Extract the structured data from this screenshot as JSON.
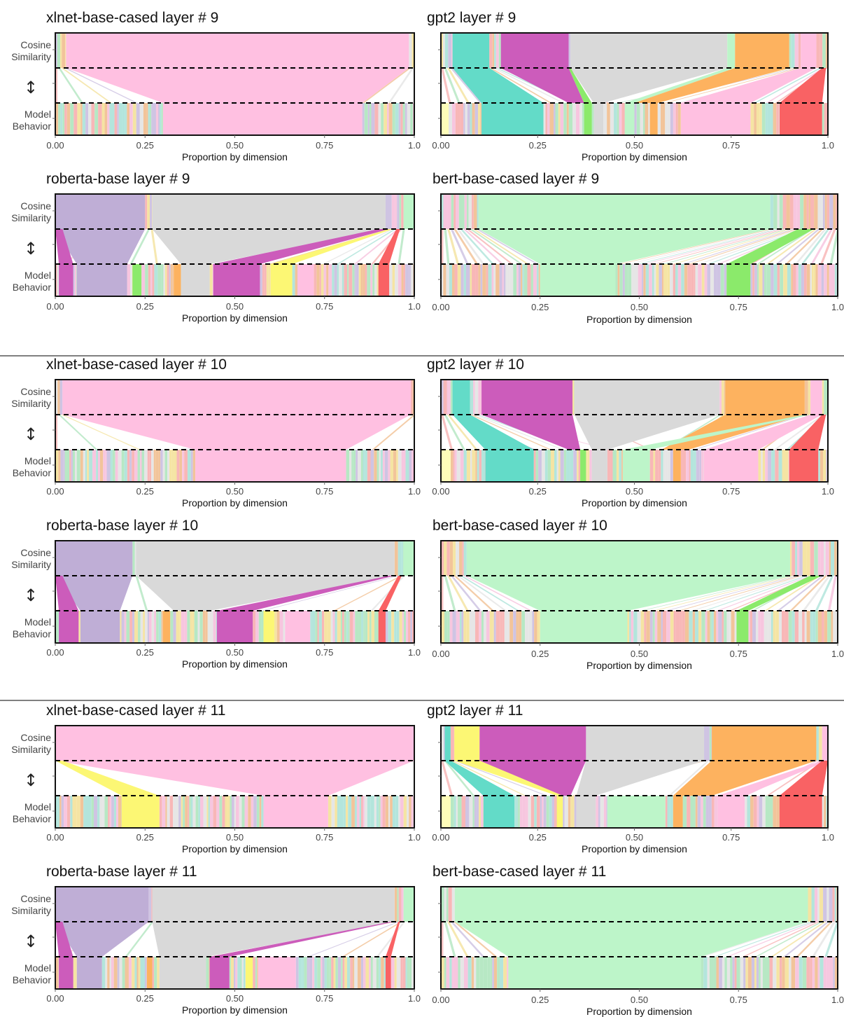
{
  "page": {
    "row_labels": {
      "cosine_1": "Cosine",
      "cosine_2": "Similarity",
      "arrow": "↕",
      "model_1": "Model",
      "model_2": "Behavior"
    }
  },
  "colors": {
    "pink": "#FFC0E1",
    "grey": "#D9D9D9",
    "lavender": "#BFAED6",
    "mint": "#BDF5C9",
    "teal": "#63DBC8",
    "magenta": "#CC5CBB",
    "orange": "#FDB25F",
    "red": "#F96264",
    "yellow": "#FCF774",
    "lightyellow": "#FEFDB9",
    "green": "#8BEA6B",
    "dashed_line": "#000000"
  },
  "chart_data": [
    {
      "type": "parallel-sets",
      "title": "xlnet-base-cased layer # 9",
      "xlabel": "Proportion by dimension",
      "xticks": [
        "0.00",
        "0.25",
        "0.50",
        "0.75",
        "1.0"
      ],
      "xlim": [
        0,
        1
      ],
      "levels": [
        "Cosine Similarity",
        "Model Behavior"
      ],
      "top": [
        {
          "c": "pink",
          "s": 0.03,
          "e": 0.985
        }
      ],
      "bottom": [
        {
          "c": "pink",
          "s": 0.3,
          "e": 0.855
        }
      ],
      "flows": []
    },
    {
      "type": "parallel-sets",
      "title": "gpt2 layer # 9",
      "xlabel": "Proportion by dimension",
      "xticks": [
        "0.00",
        "0.25",
        "0.50",
        "0.75",
        "1.0"
      ],
      "xlim": [
        0,
        1
      ],
      "levels": [
        "Cosine Similarity",
        "Model Behavior"
      ],
      "top": [
        {
          "c": "teal",
          "s": 0.03,
          "e": 0.125
        },
        {
          "c": "magenta",
          "s": 0.155,
          "e": 0.33
        },
        {
          "c": "grey",
          "s": 0.335,
          "e": 0.74
        },
        {
          "c": "mint",
          "s": 0.74,
          "e": 0.76
        },
        {
          "c": "orange",
          "s": 0.76,
          "e": 0.9
        },
        {
          "c": "pink",
          "s": 0.93,
          "e": 0.97
        }
      ],
      "bottom": [
        {
          "c": "lightyellow",
          "s": 0.0,
          "e": 0.02
        },
        {
          "c": "teal",
          "s": 0.105,
          "e": 0.265
        },
        {
          "c": "green",
          "s": 0.37,
          "e": 0.39
        },
        {
          "c": "grey",
          "s": 0.395,
          "e": 0.42
        },
        {
          "c": "mint",
          "s": 0.475,
          "e": 0.5
        },
        {
          "c": "orange",
          "s": 0.54,
          "e": 0.56
        },
        {
          "c": "pink",
          "s": 0.62,
          "e": 0.8
        },
        {
          "c": "red",
          "s": 0.875,
          "e": 0.985
        }
      ],
      "flows": [
        {
          "c": "teal",
          "ts": 0.03,
          "te": 0.125,
          "bs": 0.105,
          "be": 0.265
        },
        {
          "c": "magenta",
          "ts": 0.155,
          "te": 0.33,
          "bs": 0.33,
          "be": 0.37
        },
        {
          "c": "green",
          "ts": 0.33,
          "te": 0.335,
          "bs": 0.37,
          "be": 0.39
        },
        {
          "c": "orange",
          "ts": 0.76,
          "te": 0.9,
          "bs": 0.5,
          "be": 0.56
        },
        {
          "c": "pink",
          "ts": 0.93,
          "te": 0.97,
          "bs": 0.62,
          "be": 0.8
        },
        {
          "c": "red",
          "ts": 0.985,
          "te": 0.995,
          "bs": 0.875,
          "be": 0.985
        }
      ]
    },
    {
      "type": "parallel-sets",
      "title": "roberta-base layer # 9",
      "xlabel": "Proportion by dimension",
      "xticks": [
        "0.00",
        "0.25",
        "0.50",
        "0.75",
        "1.0"
      ],
      "xlim": [
        0,
        1
      ],
      "levels": [
        "Cosine Similarity",
        "Model Behavior"
      ],
      "top": [
        {
          "c": "lavender",
          "s": 0.0,
          "e": 0.25
        },
        {
          "c": "grey",
          "s": 0.27,
          "e": 0.92
        },
        {
          "c": "mint",
          "s": 0.97,
          "e": 1.0
        }
      ],
      "bottom": [
        {
          "c": "magenta",
          "s": 0.01,
          "e": 0.05
        },
        {
          "c": "lavender",
          "s": 0.06,
          "e": 0.2
        },
        {
          "c": "green",
          "s": 0.215,
          "e": 0.24
        },
        {
          "c": "orange",
          "s": 0.33,
          "e": 0.35
        },
        {
          "c": "grey",
          "s": 0.35,
          "e": 0.43
        },
        {
          "c": "magenta",
          "s": 0.44,
          "e": 0.57
        },
        {
          "c": "yellow",
          "s": 0.6,
          "e": 0.66
        },
        {
          "c": "pink",
          "s": 0.675,
          "e": 0.72
        },
        {
          "c": "red",
          "s": 0.9,
          "e": 0.93
        }
      ],
      "flows": [
        {
          "c": "lavender",
          "ts": 0.0,
          "te": 0.25,
          "bs": 0.06,
          "be": 0.2
        },
        {
          "c": "magenta",
          "ts": 0.0,
          "te": 0.02,
          "bs": 0.01,
          "be": 0.05
        },
        {
          "c": "grey",
          "ts": 0.27,
          "te": 0.92,
          "bs": 0.35,
          "be": 0.43
        },
        {
          "c": "magenta",
          "ts": 0.9,
          "te": 0.93,
          "bs": 0.44,
          "be": 0.57
        },
        {
          "c": "yellow",
          "ts": 0.93,
          "te": 0.94,
          "bs": 0.6,
          "be": 0.66
        },
        {
          "c": "red",
          "ts": 0.95,
          "te": 0.96,
          "bs": 0.9,
          "be": 0.93
        }
      ]
    },
    {
      "type": "parallel-sets",
      "title": "bert-base-cased layer # 9",
      "xlabel": "Proportion by dimension",
      "xticks": [
        "0.00",
        "0.25",
        "0.50",
        "0.75",
        "1.0"
      ],
      "xlim": [
        0,
        1
      ],
      "levels": [
        "Cosine Similarity",
        "Model Behavior"
      ],
      "top": [
        {
          "c": "mint",
          "s": 0.095,
          "e": 0.83
        }
      ],
      "bottom": [
        {
          "c": "mint",
          "s": 0.25,
          "e": 0.44
        },
        {
          "c": "green",
          "s": 0.72,
          "e": 0.78
        }
      ],
      "flows": [
        {
          "c": "green",
          "ts": 0.9,
          "te": 0.94,
          "bs": 0.72,
          "be": 0.78
        }
      ]
    },
    {
      "type": "parallel-sets",
      "title": "xlnet-base-cased layer # 10",
      "xlabel": "Proportion by dimension",
      "xticks": [
        "0.00",
        "0.25",
        "0.50",
        "0.75",
        "1.0"
      ],
      "xlim": [
        0,
        1
      ],
      "levels": [
        "Cosine Similarity",
        "Model Behavior"
      ],
      "top": [
        {
          "c": "pink",
          "s": 0.02,
          "e": 0.99
        }
      ],
      "bottom": [
        {
          "c": "pink",
          "s": 0.39,
          "e": 0.81
        }
      ],
      "flows": []
    },
    {
      "type": "parallel-sets",
      "title": "gpt2 layer # 10",
      "xlabel": "Proportion by dimension",
      "xticks": [
        "0.00",
        "0.25",
        "0.50",
        "0.75",
        "1.0"
      ],
      "xlim": [
        0,
        1
      ],
      "levels": [
        "Cosine Similarity",
        "Model Behavior"
      ],
      "top": [
        {
          "c": "teal",
          "s": 0.03,
          "e": 0.075
        },
        {
          "c": "magenta",
          "s": 0.105,
          "e": 0.34
        },
        {
          "c": "grey",
          "s": 0.345,
          "e": 0.72
        },
        {
          "c": "orange",
          "s": 0.735,
          "e": 0.94
        },
        {
          "c": "pink",
          "s": 0.955,
          "e": 0.985
        }
      ],
      "bottom": [
        {
          "c": "lightyellow",
          "s": 0.0,
          "e": 0.025
        },
        {
          "c": "teal",
          "s": 0.115,
          "e": 0.24
        },
        {
          "c": "green",
          "s": 0.36,
          "e": 0.375
        },
        {
          "c": "grey",
          "s": 0.39,
          "e": 0.43
        },
        {
          "c": "mint",
          "s": 0.47,
          "e": 0.54
        },
        {
          "c": "orange",
          "s": 0.6,
          "e": 0.62
        },
        {
          "c": "pink",
          "s": 0.68,
          "e": 0.82
        },
        {
          "c": "red",
          "s": 0.9,
          "e": 0.975
        }
      ],
      "flows": [
        {
          "c": "teal",
          "ts": 0.03,
          "te": 0.075,
          "bs": 0.115,
          "be": 0.24
        },
        {
          "c": "magenta",
          "ts": 0.105,
          "te": 0.34,
          "bs": 0.33,
          "be": 0.36
        },
        {
          "c": "orange",
          "ts": 0.735,
          "te": 0.94,
          "bs": 0.57,
          "be": 0.64
        },
        {
          "c": "mint",
          "ts": 0.94,
          "te": 0.955,
          "bs": 0.47,
          "be": 0.54
        },
        {
          "c": "red",
          "ts": 0.985,
          "te": 0.995,
          "bs": 0.9,
          "be": 0.975
        }
      ]
    },
    {
      "type": "parallel-sets",
      "title": "roberta-base layer # 10",
      "xlabel": "Proportion by dimension",
      "xticks": [
        "0.00",
        "0.25",
        "0.50",
        "0.75",
        "1.0"
      ],
      "xlim": [
        0,
        1
      ],
      "levels": [
        "Cosine Similarity",
        "Model Behavior"
      ],
      "top": [
        {
          "c": "lavender",
          "s": 0.0,
          "e": 0.215
        },
        {
          "c": "grey",
          "s": 0.225,
          "e": 0.945
        },
        {
          "c": "mint",
          "s": 0.97,
          "e": 1.0
        }
      ],
      "bottom": [
        {
          "c": "magenta",
          "s": 0.01,
          "e": 0.065
        },
        {
          "c": "lavender",
          "s": 0.07,
          "e": 0.18
        },
        {
          "c": "orange",
          "s": 0.3,
          "e": 0.32
        },
        {
          "c": "magenta",
          "s": 0.45,
          "e": 0.55
        },
        {
          "c": "yellow",
          "s": 0.58,
          "e": 0.61
        },
        {
          "c": "pink",
          "s": 0.64,
          "e": 0.71
        },
        {
          "c": "red",
          "s": 0.9,
          "e": 0.92
        }
      ],
      "flows": [
        {
          "c": "lavender",
          "ts": 0.0,
          "te": 0.215,
          "bs": 0.07,
          "be": 0.18
        },
        {
          "c": "magenta",
          "ts": 0.0,
          "te": 0.02,
          "bs": 0.01,
          "be": 0.065
        },
        {
          "c": "grey",
          "ts": 0.225,
          "te": 0.945,
          "bs": 0.33,
          "be": 0.43
        },
        {
          "c": "magenta",
          "ts": 0.93,
          "te": 0.945,
          "bs": 0.45,
          "be": 0.55
        },
        {
          "c": "red",
          "ts": 0.955,
          "te": 0.965,
          "bs": 0.9,
          "be": 0.92
        }
      ]
    },
    {
      "type": "parallel-sets",
      "title": "bert-base-cased layer # 10",
      "xlabel": "Proportion by dimension",
      "xticks": [
        "0.00",
        "0.25",
        "0.50",
        "0.75",
        "1.0"
      ],
      "xlim": [
        0,
        1
      ],
      "levels": [
        "Cosine Similarity",
        "Model Behavior"
      ],
      "top": [
        {
          "c": "mint",
          "s": 0.065,
          "e": 0.88
        }
      ],
      "bottom": [
        {
          "c": "mint",
          "s": 0.25,
          "e": 0.47
        },
        {
          "c": "green",
          "s": 0.745,
          "e": 0.775
        }
      ],
      "flows": [
        {
          "c": "green",
          "ts": 0.93,
          "te": 0.96,
          "bs": 0.745,
          "be": 0.775
        }
      ]
    },
    {
      "type": "parallel-sets",
      "title": "xlnet-base-cased layer # 11",
      "xlabel": "Proportion by dimension",
      "xticks": [
        "0.00",
        "0.25",
        "0.50",
        "0.75",
        "1.0"
      ],
      "xlim": [
        0,
        1
      ],
      "levels": [
        "Cosine Similarity",
        "Model Behavior"
      ],
      "top": [
        {
          "c": "pink",
          "s": 0.0,
          "e": 1.0
        }
      ],
      "bottom": [
        {
          "c": "yellow",
          "s": 0.185,
          "e": 0.29
        },
        {
          "c": "pink",
          "s": 0.58,
          "e": 0.76
        }
      ],
      "flows": [
        {
          "c": "yellow",
          "ts": 0.0,
          "te": 0.02,
          "bs": 0.185,
          "be": 0.29
        }
      ]
    },
    {
      "type": "parallel-sets",
      "title": "gpt2 layer # 11",
      "xlabel": "Proportion by dimension",
      "xticks": [
        "0.00",
        "0.25",
        "0.50",
        "0.75",
        "1.0"
      ],
      "xlim": [
        0,
        1
      ],
      "levels": [
        "Cosine Similarity",
        "Model Behavior"
      ],
      "top": [
        {
          "c": "teal",
          "s": 0.01,
          "e": 0.025
        },
        {
          "c": "yellow",
          "s": 0.035,
          "e": 0.1
        },
        {
          "c": "magenta",
          "s": 0.1,
          "e": 0.375
        },
        {
          "c": "grey",
          "s": 0.375,
          "e": 0.68
        },
        {
          "c": "orange",
          "s": 0.7,
          "e": 0.97
        },
        {
          "c": "pink",
          "s": 0.985,
          "e": 1.0
        }
      ],
      "bottom": [
        {
          "c": "lightyellow",
          "s": 0.0,
          "e": 0.025
        },
        {
          "c": "teal",
          "s": 0.11,
          "e": 0.19
        },
        {
          "c": "yellow",
          "s": 0.3,
          "e": 0.315
        },
        {
          "c": "grey",
          "s": 0.35,
          "e": 0.4
        },
        {
          "c": "mint",
          "s": 0.43,
          "e": 0.58
        },
        {
          "c": "orange",
          "s": 0.6,
          "e": 0.625
        },
        {
          "c": "pink",
          "s": 0.715,
          "e": 0.785
        },
        {
          "c": "red",
          "s": 0.875,
          "e": 0.985
        }
      ],
      "flows": [
        {
          "c": "teal",
          "ts": 0.01,
          "te": 0.025,
          "bs": 0.11,
          "be": 0.19
        },
        {
          "c": "yellow",
          "ts": 0.035,
          "te": 0.1,
          "bs": 0.3,
          "be": 0.315
        },
        {
          "c": "magenta",
          "ts": 0.1,
          "te": 0.375,
          "bs": 0.315,
          "be": 0.335
        },
        {
          "c": "orange",
          "ts": 0.7,
          "te": 0.97,
          "bs": 0.6,
          "be": 0.7
        },
        {
          "c": "red",
          "ts": 0.985,
          "te": 1.0,
          "bs": 0.875,
          "be": 0.985
        }
      ]
    },
    {
      "type": "parallel-sets",
      "title": "roberta-base layer # 11",
      "xlabel": "Proportion by dimension",
      "xticks": [
        "0.00",
        "0.25",
        "0.50",
        "0.75",
        "1.0"
      ],
      "xlim": [
        0,
        1
      ],
      "levels": [
        "Cosine Similarity",
        "Model Behavior"
      ],
      "top": [
        {
          "c": "lavender",
          "s": 0.0,
          "e": 0.26
        },
        {
          "c": "grey",
          "s": 0.27,
          "e": 0.945
        },
        {
          "c": "mint",
          "s": 0.97,
          "e": 1.0
        }
      ],
      "bottom": [
        {
          "c": "magenta",
          "s": 0.01,
          "e": 0.05
        },
        {
          "c": "lavender",
          "s": 0.06,
          "e": 0.13
        },
        {
          "c": "orange",
          "s": 0.255,
          "e": 0.27
        },
        {
          "c": "grey",
          "s": 0.29,
          "e": 0.42
        },
        {
          "c": "magenta",
          "s": 0.43,
          "e": 0.485
        },
        {
          "c": "yellow",
          "s": 0.53,
          "e": 0.55
        },
        {
          "c": "pink",
          "s": 0.565,
          "e": 0.67
        },
        {
          "c": "red",
          "s": 0.92,
          "e": 0.935
        }
      ],
      "flows": [
        {
          "c": "lavender",
          "ts": 0.0,
          "te": 0.26,
          "bs": 0.06,
          "be": 0.13
        },
        {
          "c": "magenta",
          "ts": 0.0,
          "te": 0.02,
          "bs": 0.01,
          "be": 0.05
        },
        {
          "c": "grey",
          "ts": 0.27,
          "te": 0.945,
          "bs": 0.29,
          "be": 0.42
        },
        {
          "c": "magenta",
          "ts": 0.935,
          "te": 0.945,
          "bs": 0.43,
          "be": 0.485
        },
        {
          "c": "red",
          "ts": 0.955,
          "te": 0.96,
          "bs": 0.92,
          "be": 0.935
        }
      ]
    },
    {
      "type": "parallel-sets",
      "title": "bert-base-cased layer # 11",
      "xlabel": "Proportion by dimension",
      "xticks": [
        "0.00",
        "0.25",
        "0.50",
        "0.75",
        "1.0"
      ],
      "xlim": [
        0,
        1
      ],
      "levels": [
        "Cosine Similarity",
        "Model Behavior"
      ],
      "top": [
        {
          "c": "mint",
          "s": 0.035,
          "e": 0.925
        }
      ],
      "bottom": [
        {
          "c": "mint",
          "s": 0.17,
          "e": 0.655
        }
      ],
      "flows": []
    }
  ]
}
